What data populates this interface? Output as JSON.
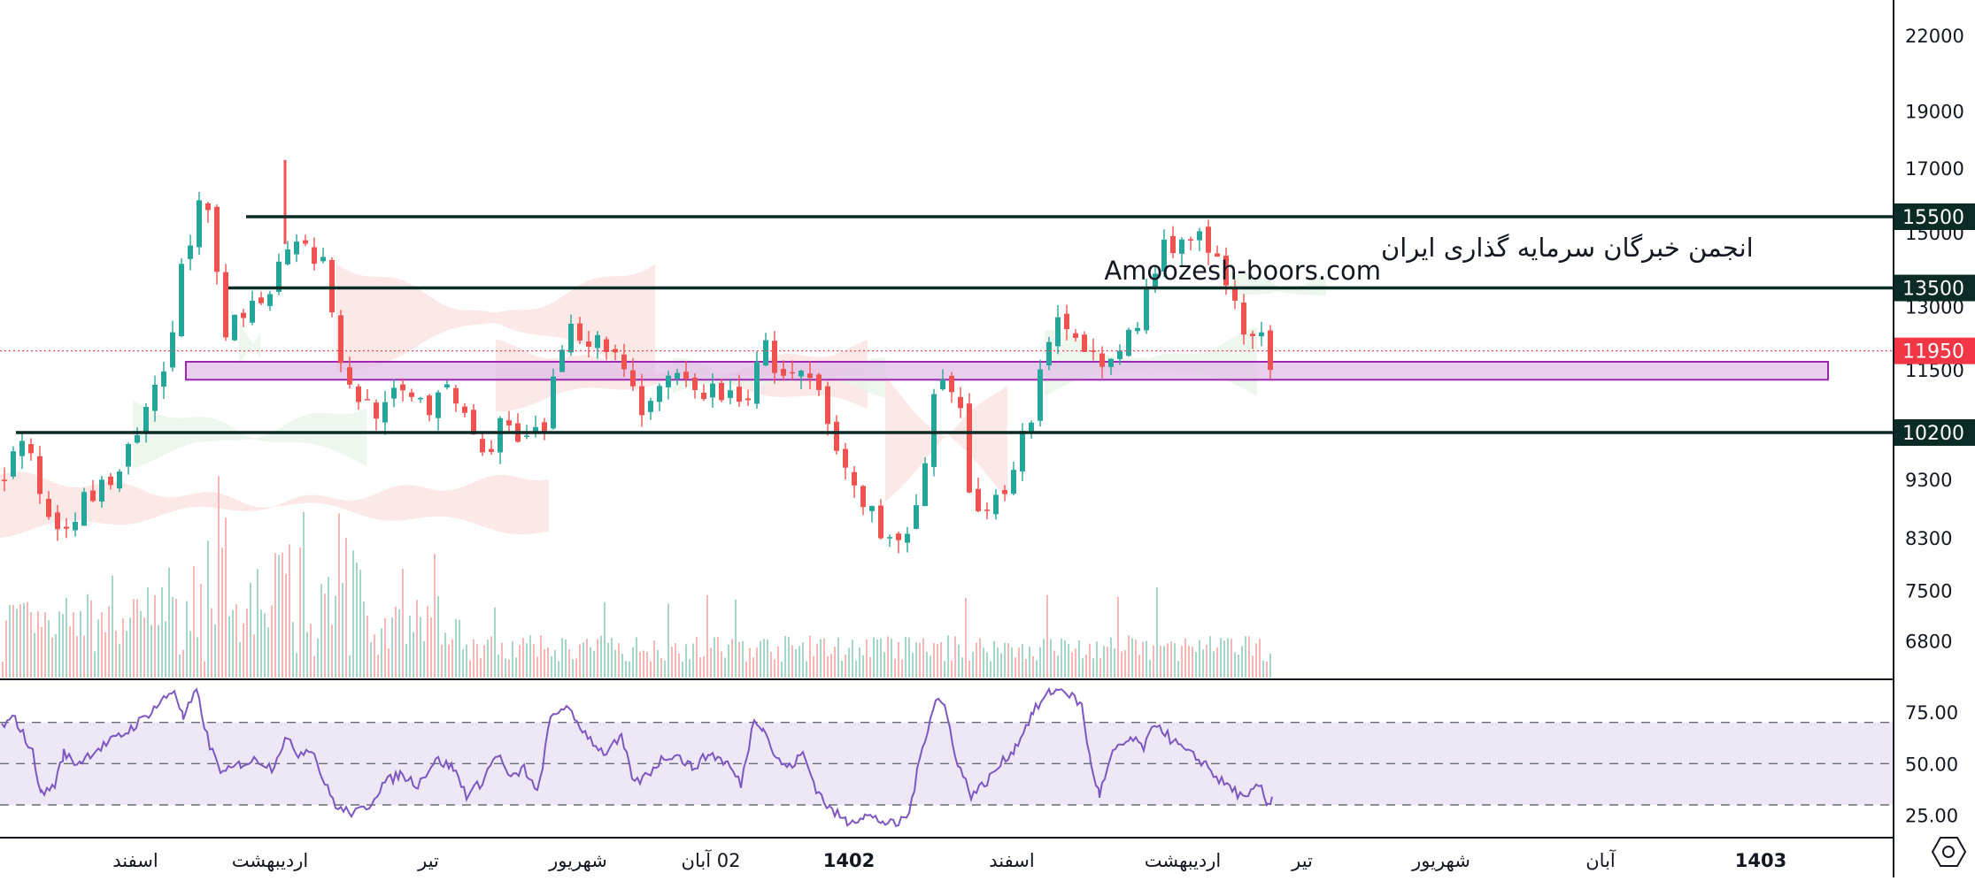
{
  "watermark": {
    "line1": "انجمن خبرگان سرمایه گذاری ایران",
    "line2": "Amoozesh-boors.com"
  },
  "colors": {
    "up": "#26a69a",
    "down": "#ef5350",
    "level_line": "#0b2b26",
    "zone_fill": "#e1bee7",
    "zone_stroke": "#9c27b0",
    "rsi_line": "#7e57c2",
    "rsi_band": "#ede7f6",
    "current_price": "#f23645"
  },
  "chart_data": [
    {
      "type": "candlestick",
      "title": "",
      "price_axis": {
        "scale": "log",
        "range": [
          7000,
          24000
        ],
        "ticks": [
          "22000",
          "19000",
          "17000",
          "15000",
          "13000",
          "11500",
          "9300",
          "8300",
          "7500",
          "6800"
        ]
      },
      "time_axis": {
        "labels": [
          {
            "text": "اسفند",
            "bold": false
          },
          {
            "text": "اردیبهشت",
            "bold": false
          },
          {
            "text": "تیر",
            "bold": false
          },
          {
            "text": "شهریور",
            "bold": false
          },
          {
            "text": "02 آبان",
            "bold": false
          },
          {
            "text": "1402",
            "bold": true
          },
          {
            "text": "اسفند",
            "bold": false
          },
          {
            "text": "اردیبهشت",
            "bold": false
          },
          {
            "text": "تیر",
            "bold": false
          },
          {
            "text": "شهریور",
            "bold": false
          },
          {
            "text": "آبان",
            "bold": false
          },
          {
            "text": "1403",
            "bold": true
          }
        ]
      },
      "levels": [
        {
          "price": 15500,
          "label": "15500"
        },
        {
          "price": 13500,
          "label": "13500"
        },
        {
          "price": 10200,
          "label": "10200"
        }
      ],
      "support_zone": [
        11300,
        11700
      ],
      "current_price": {
        "price": 11950,
        "label": "11950"
      },
      "close_path": [
        [
          0,
          9400
        ],
        [
          20,
          10100
        ],
        [
          40,
          9100
        ],
        [
          55,
          8500
        ],
        [
          75,
          8700
        ],
        [
          95,
          9000
        ],
        [
          115,
          9200
        ],
        [
          135,
          9600
        ],
        [
          155,
          10300
        ],
        [
          175,
          11200
        ],
        [
          190,
          12200
        ],
        [
          200,
          14200
        ],
        [
          215,
          15400
        ],
        [
          228,
          16200
        ],
        [
          232,
          14800
        ],
        [
          250,
          12300
        ],
        [
          270,
          12800
        ],
        [
          290,
          13300
        ],
        [
          305,
          13800
        ],
        [
          320,
          14700
        ],
        [
          335,
          15200
        ],
        [
          350,
          14400
        ],
        [
          365,
          13900
        ],
        [
          380,
          11500
        ],
        [
          395,
          11000
        ],
        [
          410,
          10800
        ],
        [
          425,
          10600
        ],
        [
          440,
          10900
        ],
        [
          460,
          11100
        ],
        [
          480,
          10700
        ],
        [
          500,
          11000
        ],
        [
          520,
          10600
        ],
        [
          540,
          9700
        ],
        [
          560,
          10400
        ],
        [
          580,
          10000
        ],
        [
          600,
          10100
        ],
        [
          615,
          10400
        ],
        [
          625,
          11900
        ],
        [
          640,
          12600
        ],
        [
          660,
          12300
        ],
        [
          680,
          12000
        ],
        [
          700,
          11700
        ],
        [
          720,
          10700
        ],
        [
          740,
          11000
        ],
        [
          760,
          11300
        ],
        [
          780,
          11000
        ],
        [
          800,
          11100
        ],
        [
          820,
          10900
        ],
        [
          835,
          10700
        ],
        [
          850,
          11800
        ],
        [
          860,
          12000
        ],
        [
          875,
          11400
        ],
        [
          900,
          11300
        ],
        [
          915,
          11200
        ],
        [
          930,
          10300
        ],
        [
          945,
          9600
        ],
        [
          960,
          9200
        ],
        [
          975,
          8800
        ],
        [
          990,
          8500
        ],
        [
          1005,
          8200
        ],
        [
          1020,
          8300
        ],
        [
          1035,
          9000
        ],
        [
          1050,
          10800
        ],
        [
          1065,
          11200
        ],
        [
          1080,
          10500
        ],
        [
          1090,
          9100
        ],
        [
          1100,
          8900
        ],
        [
          1115,
          8800
        ],
        [
          1130,
          9200
        ],
        [
          1145,
          9900
        ],
        [
          1160,
          10600
        ],
        [
          1175,
          11700
        ],
        [
          1190,
          12600
        ],
        [
          1210,
          12500
        ],
        [
          1230,
          11900
        ],
        [
          1245,
          11300
        ],
        [
          1260,
          12000
        ],
        [
          1280,
          12600
        ],
        [
          1295,
          13700
        ],
        [
          1310,
          14600
        ],
        [
          1330,
          14900
        ],
        [
          1350,
          14800
        ],
        [
          1370,
          14100
        ],
        [
          1385,
          13200
        ],
        [
          1400,
          12600
        ],
        [
          1415,
          12500
        ],
        [
          1430,
          11500
        ],
        [
          1435,
          11800
        ]
      ],
      "volume_profile": "decreasing spikes, max near اردیبهشت"
    },
    {
      "type": "line",
      "title": "",
      "y_ticks": [
        "75.00",
        "50.00",
        "25.00"
      ],
      "band": [
        30,
        70
      ],
      "midline": 50,
      "ylim": [
        15,
        90
      ],
      "series": [
        {
          "values": [
            [
              0,
              68
            ],
            [
              15,
              72
            ],
            [
              35,
              55
            ],
            [
              45,
              35
            ],
            [
              60,
              40
            ],
            [
              70,
              55
            ],
            [
              85,
              50
            ],
            [
              100,
              55
            ],
            [
              120,
              60
            ],
            [
              140,
              65
            ],
            [
              160,
              72
            ],
            [
              180,
              80
            ],
            [
              195,
              86
            ],
            [
              205,
              72
            ],
            [
              220,
              85
            ],
            [
              235,
              58
            ],
            [
              250,
              45
            ],
            [
              270,
              50
            ],
            [
              290,
              52
            ],
            [
              305,
              48
            ],
            [
              320,
              62
            ],
            [
              335,
              55
            ],
            [
              350,
              58
            ],
            [
              365,
              40
            ],
            [
              380,
              28
            ],
            [
              400,
              26
            ],
            [
              415,
              30
            ],
            [
              430,
              40
            ],
            [
              450,
              45
            ],
            [
              470,
              40
            ],
            [
              490,
              52
            ],
            [
              510,
              48
            ],
            [
              525,
              35
            ],
            [
              540,
              40
            ],
            [
              560,
              55
            ],
            [
              575,
              42
            ],
            [
              590,
              48
            ],
            [
              605,
              35
            ],
            [
              620,
              72
            ],
            [
              635,
              78
            ],
            [
              650,
              70
            ],
            [
              665,
              62
            ],
            [
              680,
              55
            ],
            [
              700,
              62
            ],
            [
              715,
              40
            ],
            [
              730,
              45
            ],
            [
              745,
              52
            ],
            [
              760,
              55
            ],
            [
              780,
              48
            ],
            [
              800,
              55
            ],
            [
              820,
              50
            ],
            [
              835,
              40
            ],
            [
              850,
              72
            ],
            [
              860,
              68
            ],
            [
              875,
              52
            ],
            [
              890,
              48
            ],
            [
              905,
              55
            ],
            [
              920,
              38
            ],
            [
              935,
              28
            ],
            [
              955,
              22
            ],
            [
              975,
              25
            ],
            [
              995,
              22
            ],
            [
              1010,
              20
            ],
            [
              1025,
              26
            ],
            [
              1040,
              58
            ],
            [
              1055,
              82
            ],
            [
              1065,
              78
            ],
            [
              1080,
              50
            ],
            [
              1095,
              35
            ],
            [
              1110,
              40
            ],
            [
              1125,
              48
            ],
            [
              1145,
              58
            ],
            [
              1165,
              75
            ],
            [
              1185,
              85
            ],
            [
              1200,
              86
            ],
            [
              1220,
              78
            ],
            [
              1230,
              50
            ],
            [
              1240,
              35
            ],
            [
              1255,
              55
            ],
            [
              1275,
              62
            ],
            [
              1290,
              58
            ],
            [
              1305,
              70
            ],
            [
              1320,
              62
            ],
            [
              1340,
              55
            ],
            [
              1360,
              50
            ],
            [
              1375,
              42
            ],
            [
              1390,
              38
            ],
            [
              1405,
              32
            ],
            [
              1420,
              40
            ],
            [
              1430,
              30
            ],
            [
              1435,
              34
            ]
          ]
        }
      ]
    }
  ]
}
